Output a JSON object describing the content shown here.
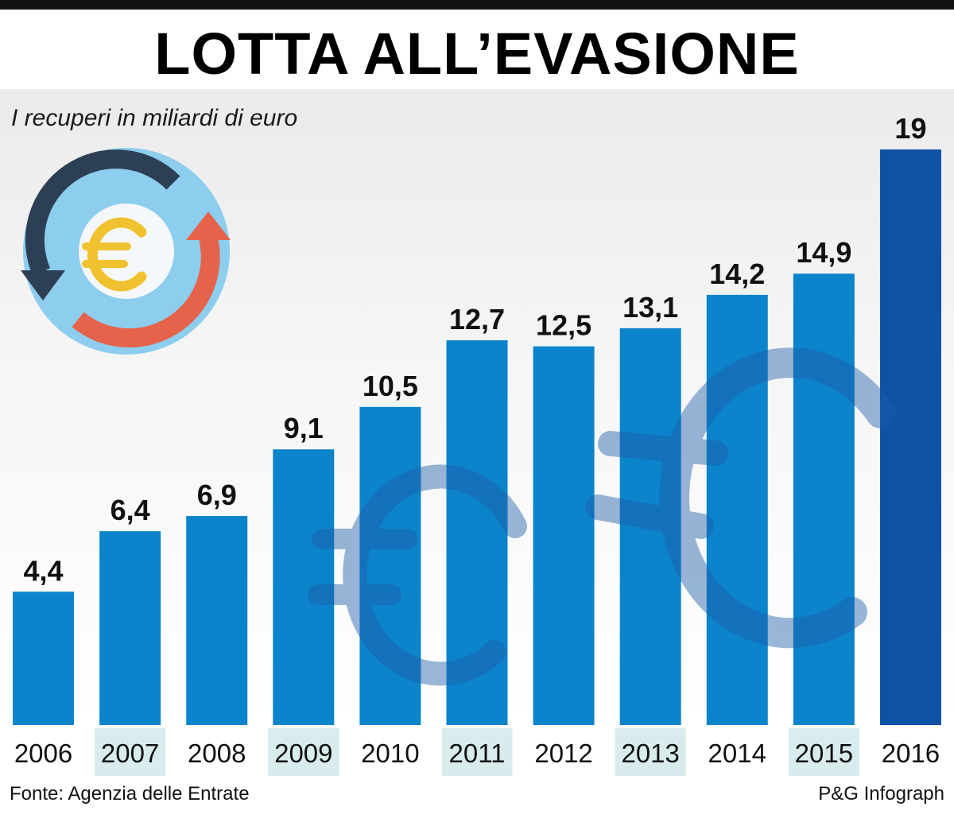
{
  "title": "LOTTA ALL’EVASIONE",
  "subtitle": "I recuperi in miliardi di euro",
  "source": "Fonte: Agenzia delle Entrate",
  "credit": "P&G Infograph",
  "icons": {
    "badge": "euro-cycle-icon",
    "watermark": "euro-sign-icon"
  },
  "colors": {
    "bar": "#0b84cc",
    "highlight_bar": "#0e52a5",
    "highlight_label": "#0e52a5",
    "year_cell_shaded": "#d8ecee",
    "euro_symbol": "#f1c230",
    "arrow_dark": "#2c3f55",
    "arrow_red": "#e6634b",
    "badge_ring": "#8dcdee"
  },
  "chart_data": {
    "type": "bar",
    "title": "LOTTA ALL’EVASIONE",
    "subtitle": "I recuperi in miliardi di euro",
    "categories": [
      "2006",
      "2007",
      "2008",
      "2009",
      "2010",
      "2011",
      "2012",
      "2013",
      "2014",
      "2015",
      "2016"
    ],
    "values": [
      4.4,
      6.4,
      6.9,
      9.1,
      10.5,
      12.7,
      12.5,
      13.1,
      14.2,
      14.9,
      19
    ],
    "value_labels": [
      "4,4",
      "6,4",
      "6,9",
      "9,1",
      "10,5",
      "12,7",
      "12,5",
      "13,1",
      "14,2",
      "14,9",
      "19"
    ],
    "highlight_index": 10,
    "ylim": [
      0,
      19
    ],
    "grid": false,
    "legend": "none"
  }
}
